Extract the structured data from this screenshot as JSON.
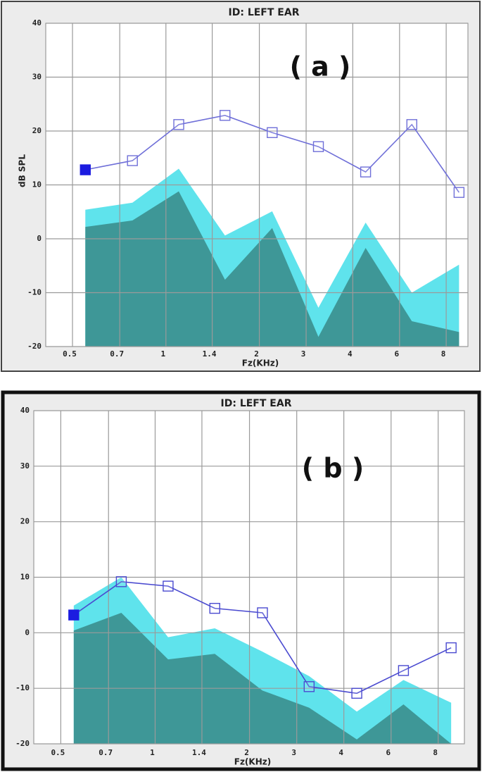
{
  "chart_data": [
    {
      "type": "line",
      "title": "ID: LEFT EAR",
      "annotation": "( a )",
      "y_label": "dB SPL",
      "x_label": "Fz(KHz)",
      "x": [
        0.55,
        0.78,
        1.1,
        1.55,
        2.2,
        3.1,
        4.4,
        6.2,
        8.8
      ],
      "xscale": "log",
      "xlim": [
        0.41,
        9.4
      ],
      "xticks": [
        0.5,
        {
          "value": 0.71,
          "label": "0.7"
        },
        1,
        {
          "value": 1.41,
          "label": "1.4"
        },
        2,
        {
          "value": 2.83,
          "label": "3"
        },
        4,
        {
          "value": 5.66,
          "label": "6"
        },
        8
      ],
      "ylim": [
        -20,
        40
      ],
      "yticks": [
        40,
        30,
        20,
        10,
        0,
        -10,
        -20
      ],
      "grid": true,
      "series": [
        {
          "type": "area",
          "color": "#5fe3ec",
          "values": [
            5.4,
            6.7,
            13,
            0.6,
            5.1,
            -12.8,
            3,
            -10,
            -4.8
          ]
        },
        {
          "type": "area",
          "color": "#3e9797",
          "values": [
            2.2,
            3.4,
            8.8,
            -7.6,
            2,
            -18.2,
            -1.7,
            -15.3,
            -17.3
          ]
        },
        {
          "type": "line",
          "color": "#6f6fd8",
          "marker": "square",
          "first_marker_color": "#1c1ce0",
          "values": [
            12.8,
            14.5,
            21.2,
            22.9,
            19.7,
            17.1,
            12.4,
            21.2,
            8.6
          ]
        }
      ]
    },
    {
      "type": "line",
      "title": "ID: LEFT EAR",
      "annotation": "( b )",
      "x_label": "Fz(KHz)",
      "x": [
        0.55,
        0.78,
        1.1,
        1.55,
        2.2,
        3.1,
        4.4,
        6.2,
        8.8
      ],
      "xscale": "log",
      "xlim": [
        0.41,
        9.7
      ],
      "xticks": [
        0.5,
        {
          "value": 0.71,
          "label": "0.7"
        },
        1,
        {
          "value": 1.41,
          "label": "1.4"
        },
        2,
        {
          "value": 2.83,
          "label": "3"
        },
        4,
        {
          "value": 5.66,
          "label": "6"
        },
        8
      ],
      "ylim": [
        -20,
        40
      ],
      "yticks": [
        40,
        30,
        20,
        10,
        0,
        -10,
        -20
      ],
      "grid": true,
      "series": [
        {
          "type": "area",
          "color": "#5fe3ec",
          "values": [
            4.9,
            10,
            -0.8,
            0.8,
            -3.4,
            -7.8,
            -14.2,
            -8.5,
            -12.6
          ]
        },
        {
          "type": "area",
          "color": "#3e9797",
          "values": [
            0.4,
            3.6,
            -4.8,
            -3.8,
            -10.4,
            -13.5,
            -19.2,
            -12.9,
            -20
          ]
        },
        {
          "type": "line",
          "color": "#4a4ad0",
          "marker": "square",
          "first_marker_color": "#1c1ce0",
          "values": [
            3.2,
            9.2,
            8.4,
            4.4,
            3.6,
            -9.7,
            -10.9,
            -6.8,
            -2.7
          ]
        }
      ]
    }
  ]
}
